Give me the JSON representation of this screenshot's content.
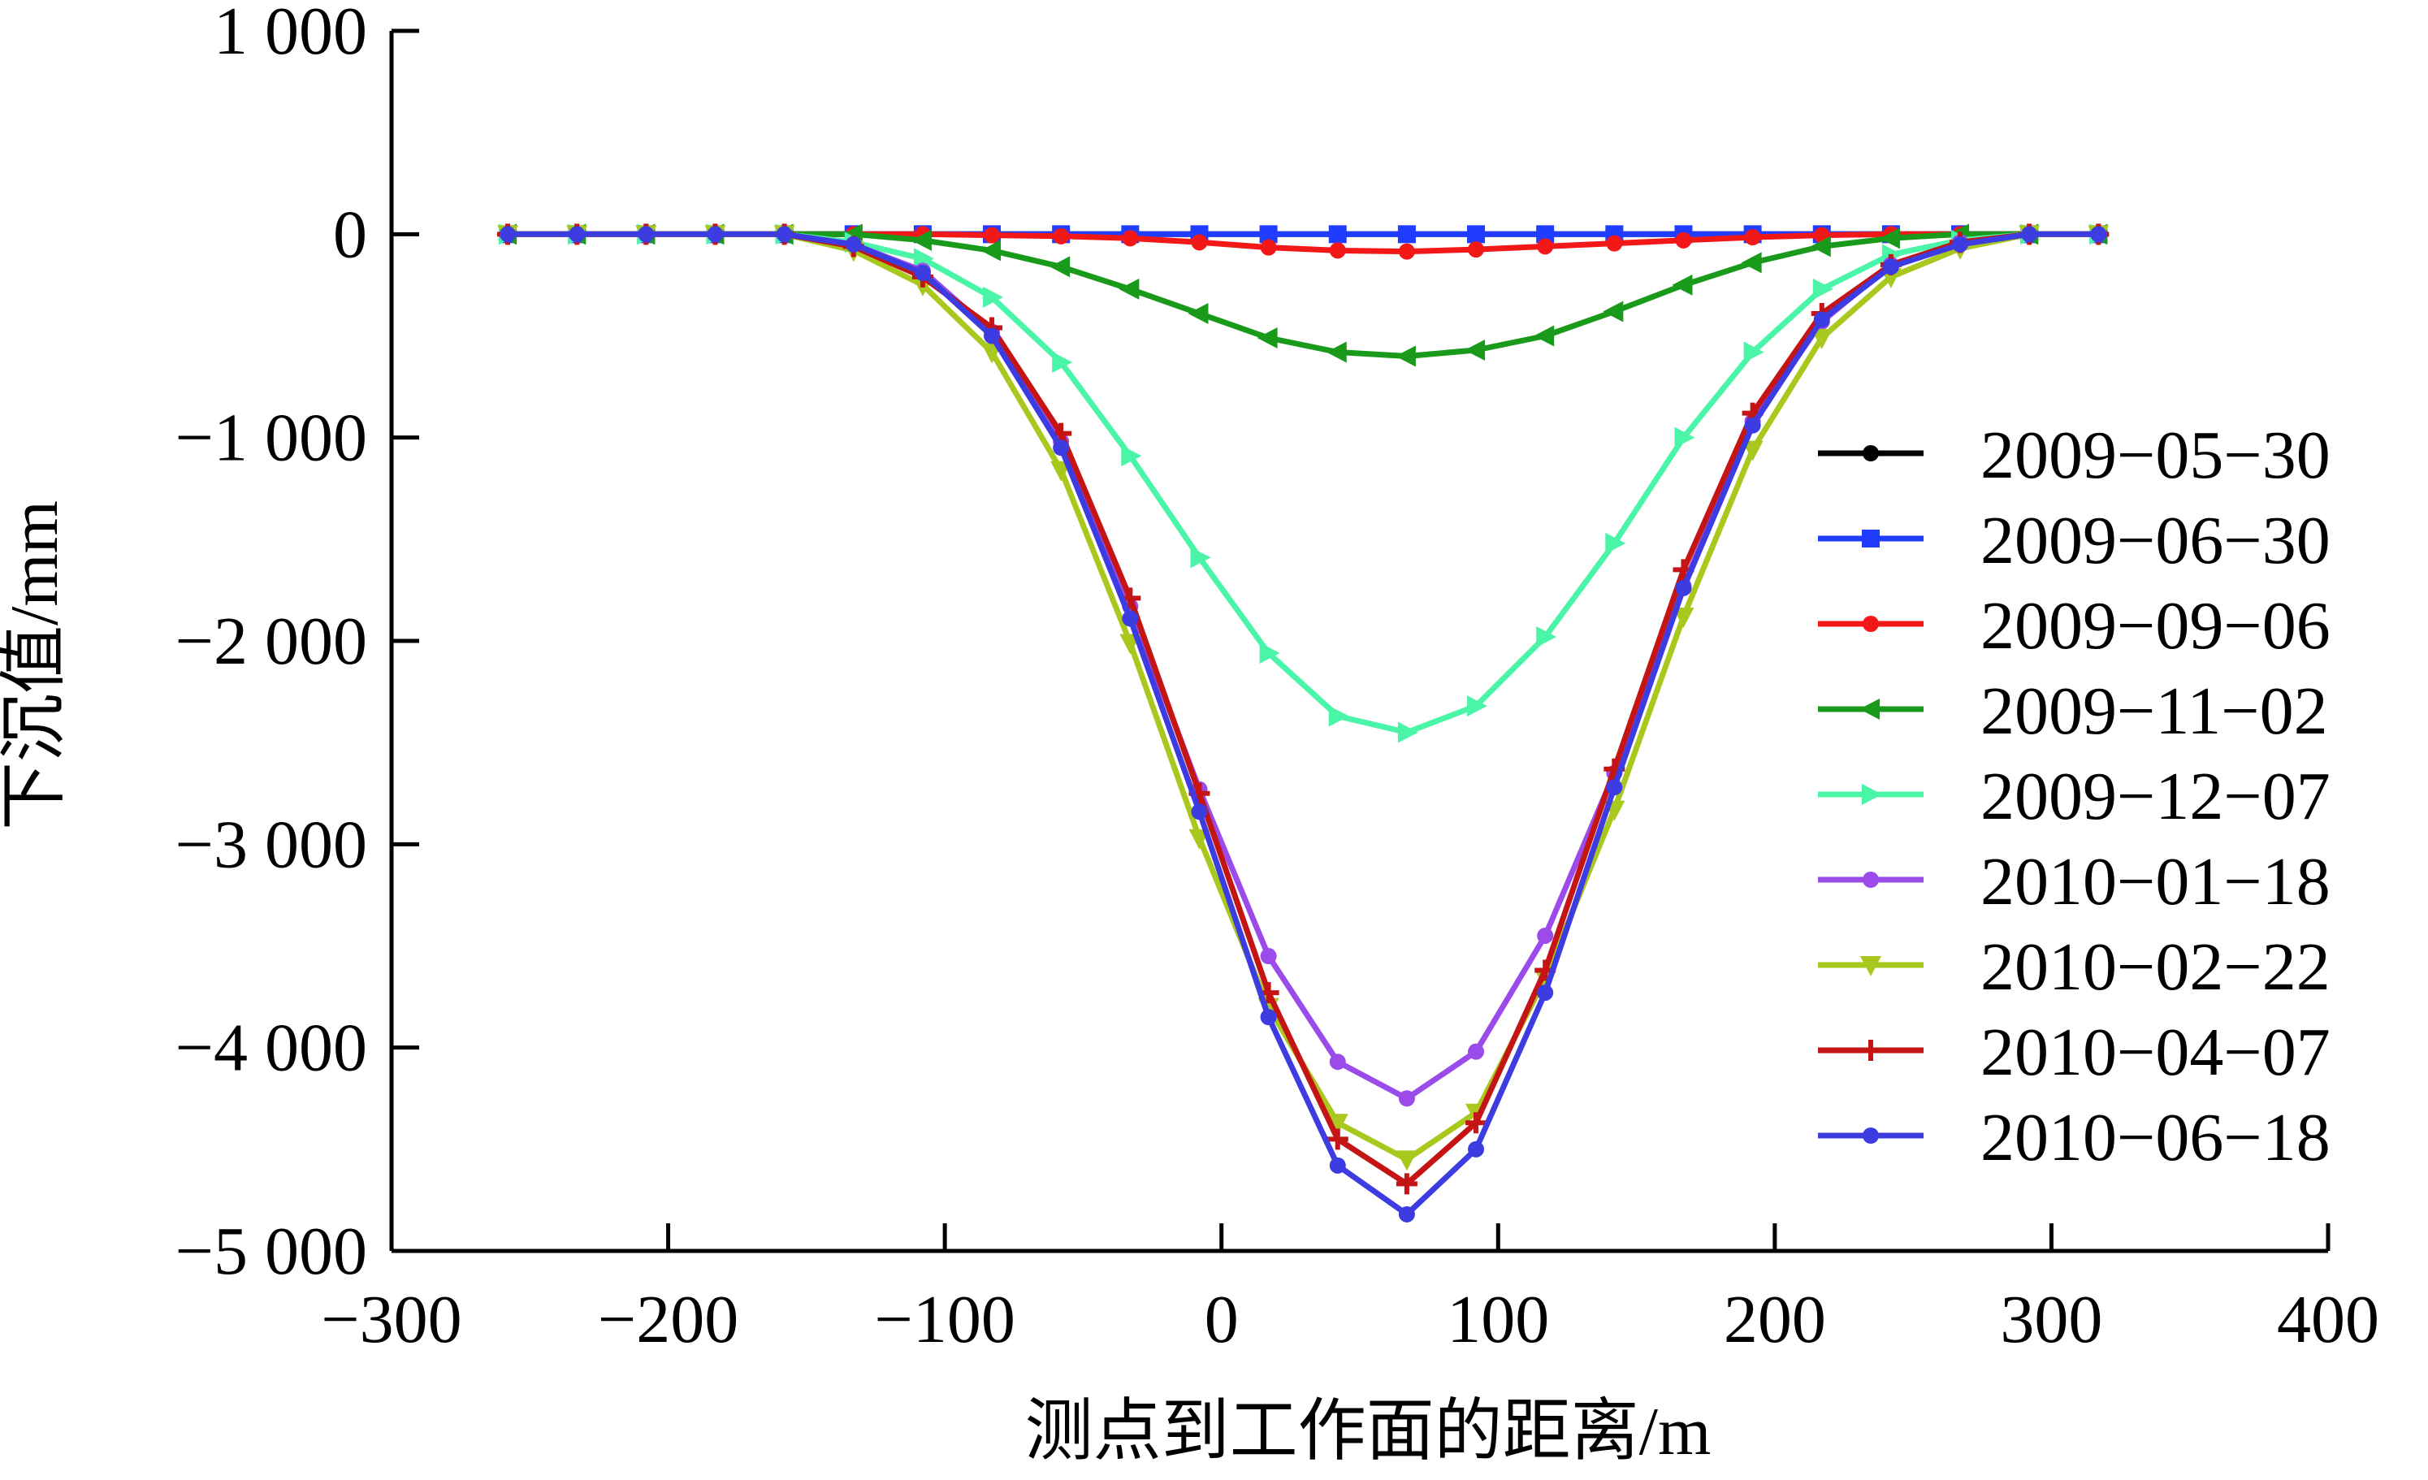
{
  "chart_data": {
    "type": "line",
    "title": "",
    "xlabel": "测点到工作面的距离/m",
    "ylabel": "下沉值/mm",
    "xlim": [
      -300,
      400
    ],
    "ylim": [
      -5000,
      1000
    ],
    "xticks": [
      -300,
      -200,
      -100,
      0,
      100,
      200,
      300,
      400
    ],
    "yticks": [
      1000,
      0,
      -1000,
      -2000,
      -3000,
      -4000,
      -5000
    ],
    "xtick_labels": [
      "−300",
      "−200",
      "−100",
      "0",
      "100",
      "200",
      "300",
      "400"
    ],
    "ytick_labels": [
      "1 000",
      "0",
      "−1 000",
      "−2 000",
      "−3 000",
      "−4 000",
      "−5 000"
    ],
    "grid": false,
    "legend_position": "right",
    "x": [
      -258,
      -233,
      -208,
      -183,
      -158,
      -133,
      -108,
      -83,
      -58,
      -33,
      -8,
      17,
      42,
      67,
      92,
      117,
      142,
      167,
      192,
      217,
      242,
      267,
      292,
      317
    ],
    "series": [
      {
        "name": "2009−05−30",
        "color": "#000000",
        "marker": "circle",
        "values": [
          0,
          0,
          0,
          0,
          0,
          0,
          0,
          0,
          0,
          0,
          0,
          0,
          0,
          0,
          0,
          0,
          0,
          0,
          0,
          0,
          0,
          0,
          0,
          0
        ]
      },
      {
        "name": "2009−06−30",
        "color": "#1f3cff",
        "marker": "square",
        "values": [
          0,
          0,
          0,
          0,
          0,
          0,
          0,
          0,
          0,
          0,
          0,
          0,
          0,
          0,
          0,
          0,
          0,
          0,
          0,
          0,
          0,
          0,
          0,
          0
        ]
      },
      {
        "name": "2009−09−06",
        "color": "#f21818",
        "marker": "circle",
        "values": [
          0,
          0,
          0,
          0,
          0,
          0,
          0,
          -5,
          -10,
          -20,
          -40,
          -65,
          -80,
          -85,
          -75,
          -60,
          -45,
          -30,
          -15,
          -5,
          0,
          0,
          0,
          0
        ]
      },
      {
        "name": "2009−11−02",
        "color": "#1a9a1a",
        "marker": "triangle-left",
        "values": [
          0,
          0,
          0,
          0,
          0,
          0,
          -30,
          -80,
          -160,
          -270,
          -390,
          -510,
          -580,
          -600,
          -570,
          -500,
          -380,
          -250,
          -140,
          -60,
          -20,
          0,
          0,
          0
        ]
      },
      {
        "name": "2009−12−07",
        "color": "#4bf5a8",
        "marker": "triangle-right",
        "values": [
          0,
          0,
          0,
          0,
          0,
          -40,
          -120,
          -310,
          -630,
          -1090,
          -1590,
          -2060,
          -2370,
          -2450,
          -2320,
          -1980,
          -1520,
          -1000,
          -580,
          -270,
          -100,
          -30,
          0,
          0
        ]
      },
      {
        "name": "2010−01−18",
        "color": "#9b4bea",
        "marker": "circle",
        "values": [
          0,
          0,
          0,
          0,
          0,
          -50,
          -180,
          -480,
          -1020,
          -1830,
          -2730,
          -3550,
          -4070,
          -4250,
          -4020,
          -3450,
          -2650,
          -1730,
          -920,
          -430,
          -150,
          -40,
          0,
          0
        ]
      },
      {
        "name": "2010−02−22",
        "color": "#a9c81e",
        "marker": "triangle-down",
        "values": [
          0,
          0,
          0,
          0,
          0,
          -80,
          -250,
          -580,
          -1160,
          -2010,
          -2970,
          -3800,
          -4370,
          -4550,
          -4320,
          -3660,
          -2830,
          -1880,
          -1060,
          -510,
          -210,
          -70,
          0,
          0
        ]
      },
      {
        "name": "2010−04−07",
        "color": "#c41414",
        "marker": "plus",
        "values": [
          0,
          0,
          0,
          0,
          0,
          -60,
          -210,
          -460,
          -980,
          -1790,
          -2750,
          -3730,
          -4450,
          -4670,
          -4370,
          -3620,
          -2630,
          -1650,
          -880,
          -390,
          -150,
          -40,
          0,
          0
        ]
      },
      {
        "name": "2010−06−18",
        "color": "#3d3ce0",
        "marker": "circle",
        "values": [
          0,
          0,
          0,
          0,
          0,
          -50,
          -190,
          -500,
          -1050,
          -1890,
          -2840,
          -3850,
          -4580,
          -4820,
          -4500,
          -3730,
          -2720,
          -1740,
          -940,
          -420,
          -160,
          -50,
          0,
          0
        ]
      }
    ]
  }
}
